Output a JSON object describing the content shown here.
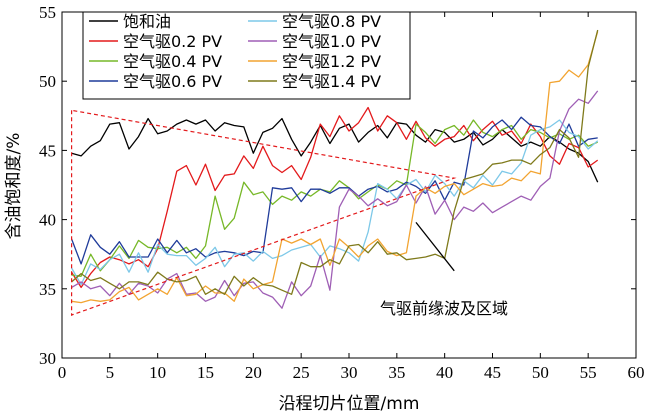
{
  "chart_data": {
    "type": "line",
    "title": "",
    "xlabel": "沿程切片位置/mm",
    "ylabel": "含油饱和度/%",
    "xlim": [
      0,
      60
    ],
    "ylim": [
      30,
      55
    ],
    "xticks": [
      0,
      5,
      10,
      15,
      20,
      25,
      30,
      35,
      40,
      45,
      50,
      55,
      60
    ],
    "yticks": [
      30,
      35,
      40,
      45,
      50,
      55
    ],
    "grid": false,
    "legend_position": "top-left",
    "annotation": {
      "text": "气驱前缘波及区域",
      "shape": "dashed-triangle",
      "color": "#e31a1c",
      "triangle_points": [
        [
          1,
          47.9
        ],
        [
          1,
          33.1
        ],
        [
          41,
          43.0
        ]
      ],
      "pointer_from": [
        41,
        36.3
      ],
      "pointer_to": [
        37,
        39.8
      ]
    },
    "series": [
      {
        "name": "饱和油",
        "color": "#000000",
        "x": [
          1,
          2,
          3,
          4,
          5,
          6,
          7,
          8,
          9,
          10,
          11,
          12,
          13,
          14,
          15,
          16,
          17,
          18,
          19,
          20,
          21,
          22,
          23,
          24,
          25,
          26,
          27,
          28,
          29,
          30,
          31,
          32,
          33,
          34,
          35,
          36,
          37,
          38,
          39,
          40,
          41,
          42,
          43,
          44,
          45,
          46,
          47,
          48,
          49,
          50,
          51,
          52,
          53,
          54,
          55,
          56
        ],
        "values": [
          44.8,
          44.6,
          45.3,
          45.7,
          46.9,
          47.0,
          45.1,
          46.0,
          47.3,
          46.2,
          46.4,
          46.9,
          47.2,
          46.9,
          47.2,
          46.4,
          47.0,
          46.8,
          46.7,
          44.8,
          46.3,
          46.6,
          47.3,
          45.8,
          44.6,
          45.6,
          46.8,
          45.5,
          46.6,
          46.9,
          45.6,
          46.3,
          46.8,
          45.9,
          47.0,
          46.9,
          46.1,
          45.6,
          46.5,
          46.3,
          45.6,
          45.8,
          46.3,
          45.4,
          45.8,
          46.5,
          45.9,
          45.3,
          45.6,
          45.3,
          46.0,
          45.6,
          45.1,
          44.8,
          44.2,
          42.7
        ]
      },
      {
        "name": "空气驱0.2 PV",
        "color": "#e31a1c",
        "x": [
          1,
          2,
          3,
          4,
          5,
          6,
          7,
          8,
          9,
          10,
          11,
          12,
          13,
          14,
          15,
          16,
          17,
          18,
          19,
          20,
          21,
          22,
          23,
          24,
          25,
          26,
          27,
          28,
          29,
          30,
          31,
          32,
          33,
          34,
          35,
          36,
          37,
          38,
          39,
          40,
          41,
          42,
          43,
          44,
          45,
          46,
          47,
          48,
          49,
          50,
          51,
          52,
          53,
          54,
          55,
          56
        ],
        "values": [
          36.2,
          35.1,
          36.1,
          36.9,
          37.3,
          37.1,
          36.8,
          37.1,
          36.6,
          37.9,
          40.6,
          43.5,
          43.9,
          42.5,
          44.0,
          42.1,
          43.2,
          43.3,
          44.6,
          43.7,
          45.3,
          43.9,
          43.4,
          43.9,
          42.9,
          44.5,
          46.9,
          46.0,
          47.5,
          46.4,
          47.0,
          48.1,
          46.4,
          47.5,
          47.0,
          45.8,
          47.1,
          45.9,
          45.3,
          45.8,
          46.0,
          46.8,
          45.7,
          46.5,
          47.1,
          46.1,
          46.4,
          45.5,
          46.9,
          46.0,
          44.6,
          44.0,
          45.5,
          45.2,
          43.8,
          44.3
        ]
      },
      {
        "name": "空气驱0.4 PV",
        "color": "#77b828",
        "x": [
          1,
          2,
          3,
          4,
          5,
          6,
          7,
          8,
          9,
          10,
          11,
          12,
          13,
          14,
          15,
          16,
          17,
          18,
          19,
          20,
          21,
          22,
          23,
          24,
          25,
          26,
          27,
          28,
          29,
          30,
          31,
          32,
          33,
          34,
          35,
          36,
          37,
          38,
          39,
          40,
          41,
          42,
          43,
          44,
          45,
          46,
          47,
          48,
          49,
          50,
          51,
          52,
          53,
          54,
          55,
          56
        ],
        "values": [
          36.0,
          35.9,
          37.5,
          36.3,
          37.1,
          38.1,
          37.2,
          38.5,
          38.0,
          37.9,
          38.0,
          37.6,
          38.0,
          37.2,
          38.1,
          41.7,
          39.3,
          40.1,
          42.7,
          41.8,
          42.0,
          41.1,
          41.7,
          41.4,
          42.0,
          41.7,
          42.2,
          42.0,
          42.8,
          42.3,
          41.5,
          42.0,
          42.5,
          42.2,
          42.8,
          42.5,
          46.9,
          46.3,
          45.5,
          46.5,
          46.8,
          46.1,
          47.2,
          46.3,
          46.0,
          46.5,
          46.8,
          45.8,
          46.5,
          46.3,
          45.9,
          46.2,
          45.8,
          46.1,
          45.3,
          45.6
        ]
      },
      {
        "name": "空气驱0.6 PV",
        "color": "#1f3b9a",
        "x": [
          1,
          2,
          3,
          4,
          5,
          6,
          7,
          8,
          9,
          10,
          11,
          12,
          13,
          14,
          15,
          16,
          17,
          18,
          19,
          20,
          21,
          22,
          23,
          24,
          25,
          26,
          27,
          28,
          29,
          30,
          31,
          32,
          33,
          34,
          35,
          36,
          37,
          38,
          39,
          40,
          41,
          42,
          43,
          44,
          45,
          46,
          47,
          48,
          49,
          50,
          51,
          52,
          53,
          54,
          55,
          56
        ],
        "values": [
          38.6,
          36.8,
          38.9,
          38.0,
          37.5,
          38.4,
          37.3,
          37.3,
          37.3,
          38.6,
          37.6,
          38.5,
          37.6,
          37.9,
          37.3,
          37.6,
          37.7,
          37.6,
          37.4,
          37.7,
          37.6,
          42.3,
          42.2,
          42.3,
          41.3,
          42.2,
          42.2,
          41.9,
          42.3,
          42.3,
          41.7,
          42.2,
          42.4,
          42.0,
          42.2,
          42.7,
          42.4,
          41.9,
          42.8,
          41.4,
          42.7,
          42.5,
          46.4,
          45.9,
          46.7,
          47.2,
          46.5,
          47.4,
          46.8,
          46.7,
          46.0,
          45.5,
          46.9,
          45.3,
          45.8,
          45.9
        ]
      },
      {
        "name": "空气驱0.8 PV",
        "color": "#7dc8e8",
        "x": [
          1,
          2,
          3,
          4,
          5,
          6,
          7,
          8,
          9,
          10,
          11,
          12,
          13,
          14,
          15,
          16,
          17,
          18,
          19,
          20,
          21,
          22,
          23,
          24,
          25,
          26,
          27,
          28,
          29,
          30,
          31,
          32,
          33,
          34,
          35,
          36,
          37,
          38,
          39,
          40,
          41,
          42,
          43,
          44,
          45,
          46,
          47,
          48,
          49,
          50,
          51,
          52,
          53,
          54,
          55,
          56
        ],
        "values": [
          36.5,
          35.3,
          36.8,
          36.4,
          37.1,
          37.5,
          36.2,
          37.6,
          36.2,
          38.2,
          37.5,
          37.4,
          37.4,
          36.7,
          37.2,
          38.0,
          36.6,
          37.5,
          37.6,
          37.0,
          37.7,
          37.2,
          37.4,
          37.8,
          38.0,
          38.2,
          37.3,
          38.1,
          37.9,
          37.6,
          37.0,
          39.1,
          42.6,
          42.2,
          41.5,
          42.5,
          42.9,
          42.0,
          43.2,
          42.6,
          41.7,
          42.8,
          42.3,
          43.2,
          42.5,
          43.5,
          43.3,
          44.1,
          46.1,
          46.5,
          46.7,
          47.2,
          46.3,
          46.0,
          45.1,
          45.7
        ]
      },
      {
        "name": "空气驱1.0 PV",
        "color": "#9f5fb5",
        "x": [
          1,
          2,
          3,
          4,
          5,
          6,
          7,
          8,
          9,
          10,
          11,
          12,
          13,
          14,
          15,
          16,
          17,
          18,
          19,
          20,
          21,
          22,
          23,
          24,
          25,
          26,
          27,
          28,
          29,
          30,
          31,
          32,
          33,
          34,
          35,
          36,
          37,
          38,
          39,
          40,
          41,
          42,
          43,
          44,
          45,
          46,
          47,
          48,
          49,
          50,
          51,
          52,
          53,
          54,
          55,
          56
        ],
        "values": [
          35.1,
          35.5,
          35.0,
          35.2,
          34.5,
          35.4,
          34.6,
          35.4,
          35.2,
          34.7,
          35.7,
          36.1,
          34.6,
          34.7,
          34.1,
          34.4,
          35.6,
          34.5,
          35.4,
          35.5,
          34.7,
          34.4,
          33.6,
          35.5,
          34.5,
          35.2,
          37.4,
          34.9,
          40.9,
          42.2,
          41.7,
          41.0,
          41.5,
          41.0,
          41.3,
          42.5,
          41.2,
          42.4,
          40.4,
          41.4,
          40.0,
          40.9,
          40.6,
          41.2,
          40.5,
          40.9,
          41.3,
          41.7,
          41.4,
          42.4,
          43.0,
          46.4,
          48.0,
          48.7,
          48.4,
          49.3
        ]
      },
      {
        "name": "空气驱1.2 PV",
        "color": "#f2a431",
        "x": [
          1,
          2,
          3,
          4,
          5,
          6,
          7,
          8,
          9,
          10,
          11,
          12,
          13,
          14,
          15,
          16,
          17,
          18,
          19,
          20,
          21,
          22,
          23,
          24,
          25,
          26,
          27,
          28,
          29,
          30,
          31,
          32,
          33,
          34,
          35,
          36,
          37,
          38,
          39,
          40,
          41,
          42,
          43,
          44,
          45,
          46,
          47,
          48,
          49,
          50,
          51,
          52,
          53,
          54,
          55,
          56
        ],
        "values": [
          34.1,
          34.0,
          34.2,
          34.1,
          34.2,
          34.8,
          35.1,
          34.2,
          34.6,
          35.0,
          34.6,
          35.8,
          34.5,
          34.6,
          35.2,
          34.7,
          34.7,
          34.1,
          35.7,
          35.0,
          35.3,
          35.5,
          38.6,
          38.3,
          38.6,
          38.2,
          38.6,
          36.7,
          38.6,
          38.0,
          37.3,
          38.1,
          38.6,
          37.7,
          37.4,
          37.6,
          41.7,
          42.3,
          41.9,
          42.4,
          42.6,
          41.8,
          42.2,
          42.6,
          42.4,
          42.5,
          43.0,
          42.8,
          43.5,
          43.3,
          49.9,
          50.0,
          50.8,
          50.3,
          51.2,
          53.6
        ]
      },
      {
        "name": "空气驱1.4 PV",
        "color": "#7f7a1b",
        "x": [
          1,
          2,
          3,
          4,
          5,
          6,
          7,
          8,
          9,
          10,
          11,
          12,
          13,
          14,
          15,
          16,
          17,
          18,
          19,
          20,
          21,
          22,
          23,
          24,
          25,
          26,
          27,
          28,
          29,
          30,
          31,
          32,
          33,
          34,
          35,
          36,
          37,
          38,
          39,
          40,
          41,
          42,
          43,
          44,
          45,
          46,
          47,
          48,
          49,
          50,
          51,
          52,
          53,
          54,
          55,
          56
        ],
        "values": [
          35.5,
          36.1,
          35.6,
          35.8,
          35.4,
          35.0,
          35.5,
          35.5,
          35.3,
          36.2,
          35.7,
          35.5,
          35.6,
          35.9,
          34.6,
          35.0,
          34.6,
          35.9,
          35.2,
          35.8,
          35.3,
          35.2,
          34.9,
          34.6,
          36.9,
          36.6,
          36.6,
          37.1,
          36.8,
          38.1,
          38.2,
          37.6,
          38.4,
          37.5,
          37.6,
          37.1,
          37.2,
          37.3,
          37.5,
          37.2,
          40.6,
          42.9,
          43.1,
          43.3,
          44.0,
          44.1,
          44.3,
          44.3,
          44.0,
          44.7,
          45.2,
          46.5,
          45.9,
          44.5,
          51.0,
          53.7
        ]
      }
    ]
  }
}
